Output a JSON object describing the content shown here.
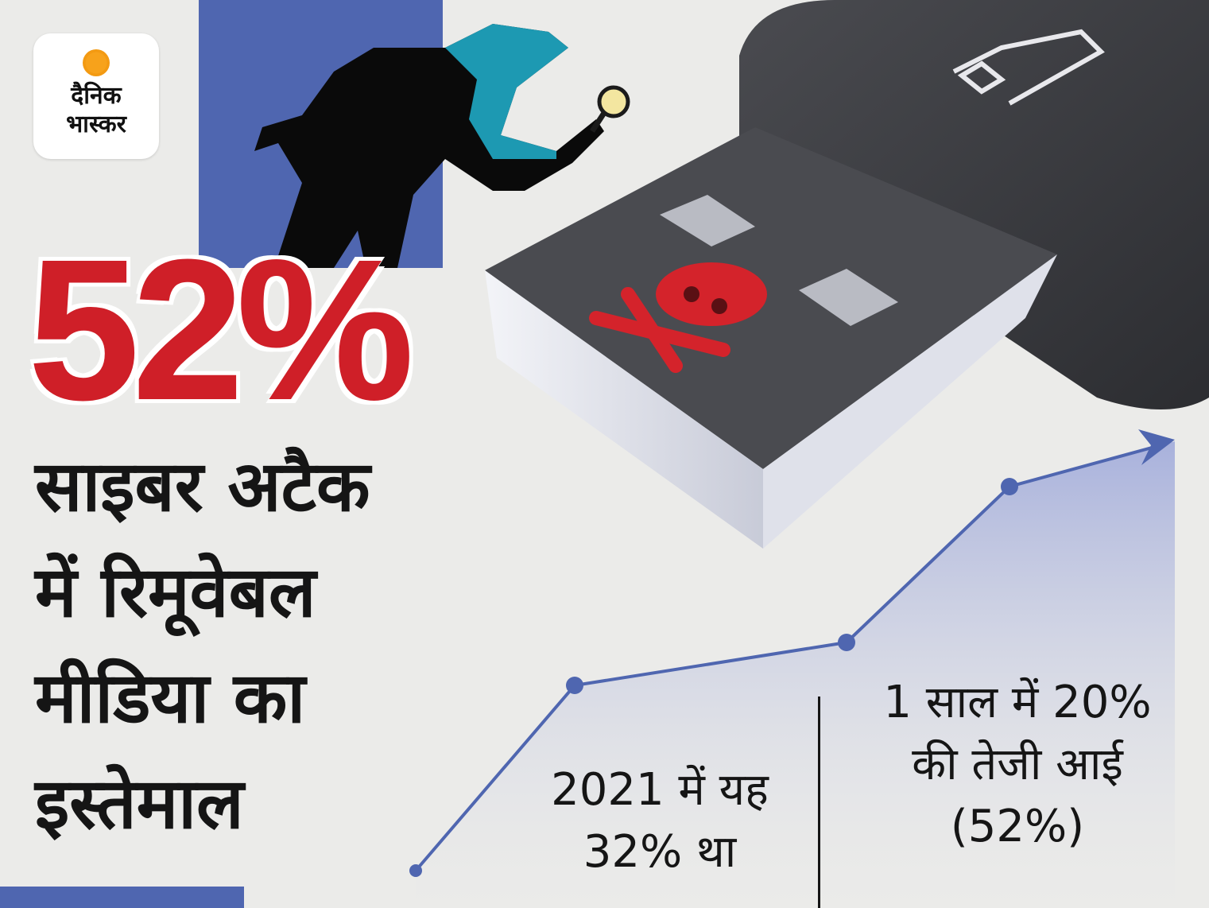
{
  "logo": {
    "line1": "दैनिक",
    "line2": "भास्कर",
    "sun_color": "#f7a21b"
  },
  "headline": {
    "figure": "52%",
    "lines": [
      "साइबर अटैक",
      "में रिमूवेबल",
      "मीडिया का",
      "इस्तेमाल"
    ]
  },
  "notes": {
    "left": [
      "2021 में यह",
      "32% था"
    ],
    "right": [
      "1 साल में 20%",
      "की तेजी आई",
      "(52%)"
    ]
  },
  "colors": {
    "accent_blue": "#4f66b0",
    "accent_red": "#cf1f28",
    "background": "#ebebe9"
  },
  "icons": [
    "usb-drive-icon",
    "skull-crossbones-icon",
    "detective-icon",
    "magnifier-icon"
  ]
}
